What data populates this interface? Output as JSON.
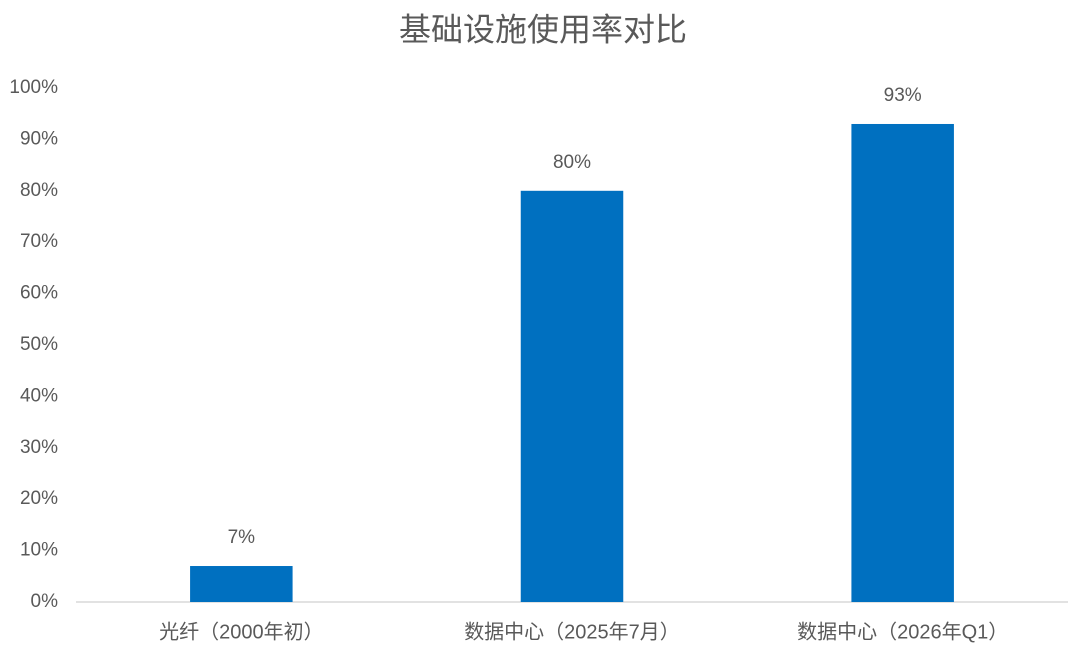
{
  "chart_data": {
    "type": "bar",
    "title": "基础设施使用率对比",
    "categories": [
      "光纤（2000年初）",
      "数据中心（2025年7月）",
      "数据中心（2026年Q1）"
    ],
    "values": [
      7,
      80,
      93
    ],
    "value_labels": [
      "7%",
      "80%",
      "93%"
    ],
    "color": "#0070c0",
    "ylim": [
      0,
      100
    ],
    "yticks": [
      {
        "value": 0,
        "label": "0%"
      },
      {
        "value": 10,
        "label": "10%"
      },
      {
        "value": 20,
        "label": "20%"
      },
      {
        "value": 30,
        "label": "30%"
      },
      {
        "value": 40,
        "label": "40%"
      },
      {
        "value": 50,
        "label": "50%"
      },
      {
        "value": 60,
        "label": "60%"
      },
      {
        "value": 70,
        "label": "70%"
      },
      {
        "value": 80,
        "label": "80%"
      },
      {
        "value": 90,
        "label": "90%"
      },
      {
        "value": 100,
        "label": "100%"
      }
    ],
    "grid": false
  }
}
